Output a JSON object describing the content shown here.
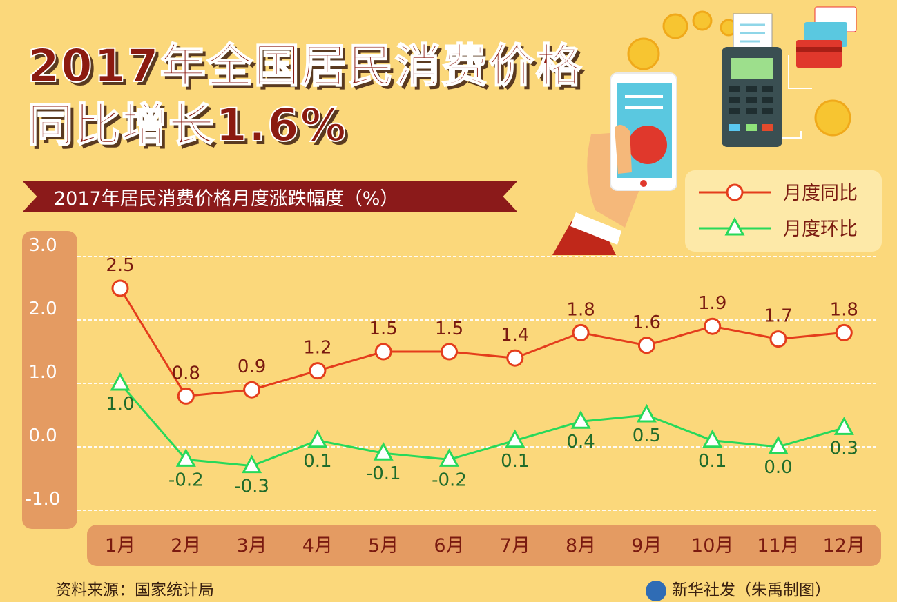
{
  "header": {
    "title_line1": "2017年全国居民消费价格",
    "title_line2": "同比增长1.6%"
  },
  "chart_data": {
    "type": "line",
    "title": "2017年居民消费价格月度涨跌幅度（%）",
    "categories": [
      "1月",
      "2月",
      "3月",
      "4月",
      "5月",
      "6月",
      "7月",
      "8月",
      "9月",
      "10月",
      "11月",
      "12月"
    ],
    "series": [
      {
        "name": "月度同比",
        "marker": "circle",
        "color": "#e43d1c",
        "values": [
          2.5,
          0.8,
          0.9,
          1.2,
          1.5,
          1.5,
          1.4,
          1.8,
          1.6,
          1.9,
          1.7,
          1.8
        ],
        "labels": [
          "2.5",
          "0.8",
          "0.9",
          "1.2",
          "1.5",
          "1.5",
          "1.4",
          "1.8",
          "1.6",
          "1.9",
          "1.7",
          "1.8"
        ]
      },
      {
        "name": "月度环比",
        "marker": "triangle",
        "color": "#27d95a",
        "values": [
          1.0,
          -0.2,
          -0.3,
          0.1,
          -0.1,
          -0.2,
          0.1,
          0.4,
          0.5,
          0.1,
          0.0,
          0.3
        ],
        "labels": [
          "1.0",
          "-0.2",
          "-0.3",
          "0.1",
          "-0.1",
          "-0.2",
          "0.1",
          "0.4",
          "0.5",
          "0.1",
          "0.0",
          "0.3"
        ]
      }
    ],
    "yticks": [
      "3.0",
      "2.0",
      "1.0",
      "0.0",
      "-1.0"
    ],
    "ylim": [
      -1.0,
      3.0
    ],
    "grid": true,
    "legend_position": "top-right"
  },
  "footer": {
    "source": "资料来源：国家统计局",
    "credit": "新华社发（朱禹制图）"
  }
}
